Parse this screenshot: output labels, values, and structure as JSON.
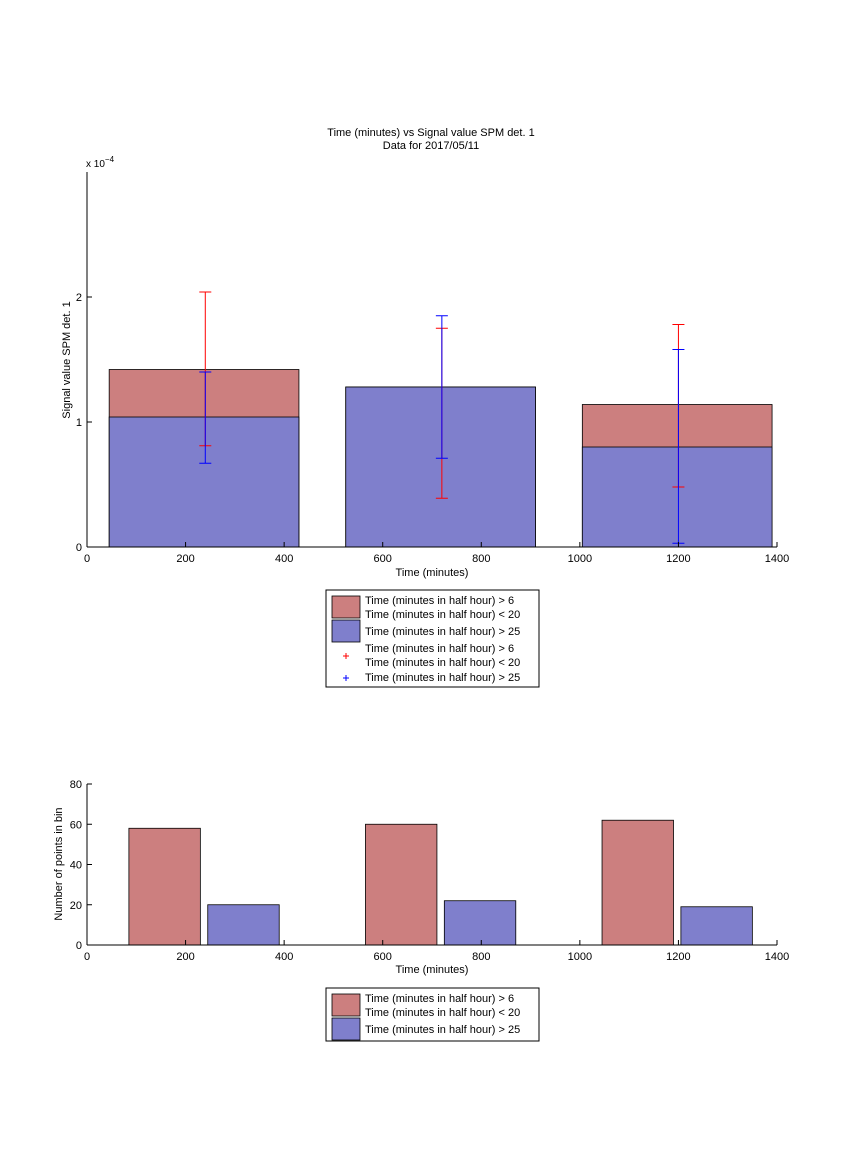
{
  "colors": {
    "series_red": "#cc7f7f",
    "series_blue": "#7f7fcc",
    "errorbar_red": "#ff0000",
    "errorbar_blue": "#0000ff"
  },
  "chart_data": [
    {
      "type": "bar",
      "title": "Time (minutes) vs Signal value SPM det. 1",
      "subtitle": "Data for 2017/05/11",
      "xlabel": "Time (minutes)",
      "ylabel": "Signal value SPM det. 1",
      "y_exponent_label": "x 10",
      "y_exponent": "−4",
      "xlim": [
        0,
        1400
      ],
      "ylim": [
        0,
        3
      ],
      "xticks": [
        0,
        200,
        400,
        600,
        800,
        1000,
        1200,
        1400
      ],
      "yticks": [
        0,
        1,
        2
      ],
      "x_tick_labels": [
        "0",
        "200",
        "400",
        "600",
        "800",
        "1000",
        "1200",
        "1400"
      ],
      "y_tick_labels": [
        "0",
        "1",
        "2"
      ],
      "bins": [
        {
          "x_start": 45,
          "x_end": 430,
          "center": 240
        },
        {
          "x_start": 525,
          "x_end": 910,
          "center": 720
        },
        {
          "x_start": 1005,
          "x_end": 1390,
          "center": 1200
        }
      ],
      "series": [
        {
          "name": "Time (minutes in half hour) > 6\nTime (minutes in half hour) < 20",
          "color": "red",
          "values": [
            1.42,
            1.28,
            1.14
          ],
          "errorbar_low": [
            0.81,
            0.39,
            0.48
          ],
          "errorbar_high": [
            2.04,
            1.75,
            1.78
          ]
        },
        {
          "name": "Time (minutes in half hour) > 25",
          "color": "blue",
          "values": [
            1.04,
            1.28,
            0.8
          ],
          "errorbar_low": [
            0.67,
            0.71,
            0.03
          ],
          "errorbar_high": [
            1.4,
            1.85,
            1.58
          ]
        }
      ],
      "legend": {
        "placement": "below",
        "entries": [
          {
            "type": "patch",
            "color": "red",
            "lines": [
              "Time (minutes in half hour) > 6",
              "Time (minutes in half hour) < 20"
            ]
          },
          {
            "type": "patch",
            "color": "blue",
            "lines": [
              "Time (minutes in half hour) > 25"
            ]
          },
          {
            "type": "marker",
            "color": "red",
            "lines": [
              "Time (minutes in half hour) > 6",
              "Time (minutes in half hour) < 20"
            ]
          },
          {
            "type": "marker",
            "color": "blue",
            "lines": [
              "Time (minutes in half hour) > 25"
            ]
          }
        ]
      }
    },
    {
      "type": "bar",
      "xlabel": "Time (minutes)",
      "ylabel": "Number of points in bin",
      "xlim": [
        0,
        1400
      ],
      "ylim": [
        0,
        80
      ],
      "xticks": [
        0,
        200,
        400,
        600,
        800,
        1000,
        1200,
        1400
      ],
      "yticks": [
        0,
        20,
        40,
        60,
        80
      ],
      "x_tick_labels": [
        "0",
        "200",
        "400",
        "600",
        "800",
        "1000",
        "1200",
        "1400"
      ],
      "y_tick_labels": [
        "0",
        "20",
        "40",
        "60",
        "80"
      ],
      "series": [
        {
          "name": "Time (minutes in half hour) > 6\nTime (minutes in half hour) < 20",
          "color": "red",
          "bars": [
            {
              "x_start": 85,
              "x_end": 230,
              "value": 58
            },
            {
              "x_start": 565,
              "x_end": 710,
              "value": 60
            },
            {
              "x_start": 1045,
              "x_end": 1190,
              "value": 62
            }
          ]
        },
        {
          "name": "Time (minutes in half hour) > 25",
          "color": "blue",
          "bars": [
            {
              "x_start": 245,
              "x_end": 390,
              "value": 20
            },
            {
              "x_start": 725,
              "x_end": 870,
              "value": 22
            },
            {
              "x_start": 1205,
              "x_end": 1350,
              "value": 19
            }
          ]
        }
      ],
      "legend": {
        "placement": "below",
        "entries": [
          {
            "type": "patch",
            "color": "red",
            "lines": [
              "Time (minutes in half hour) > 6",
              "Time (minutes in half hour) < 20"
            ]
          },
          {
            "type": "patch",
            "color": "blue",
            "lines": [
              "Time (minutes in half hour) > 25"
            ]
          }
        ]
      }
    }
  ]
}
